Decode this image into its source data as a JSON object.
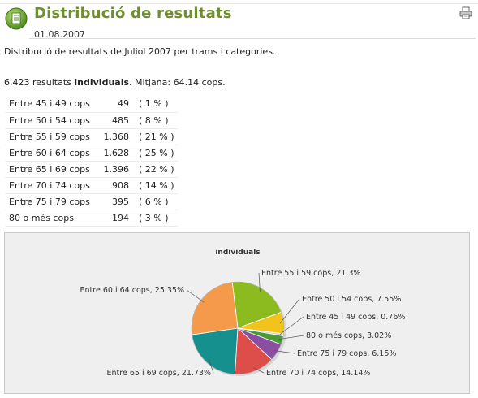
{
  "header": {
    "title": "Distribució de resultats",
    "date": "01.08.2007",
    "icon": "document-icon",
    "print_icon": "print-icon"
  },
  "intro": "Distribució de resultats de Juliol 2007 per trams i categories.",
  "summary": {
    "count": "6.423 resultats ",
    "bold": "individuals",
    "rest": ". Mitjana: 64.14 cops."
  },
  "table": {
    "rows": [
      {
        "label": "Entre 45 i 49 cops",
        "count": "49",
        "pct": "( 1 % )"
      },
      {
        "label": "Entre 50 i 54 cops",
        "count": "485",
        "pct": "( 8 % )"
      },
      {
        "label": "Entre 55 i 59 cops",
        "count": "1.368",
        "pct": "( 21 % )"
      },
      {
        "label": "Entre 60 i 64 cops",
        "count": "1.628",
        "pct": "( 25 % )"
      },
      {
        "label": "Entre 65 i 69 cops",
        "count": "1.396",
        "pct": "( 22 % )"
      },
      {
        "label": "Entre 70 i 74 cops",
        "count": "908",
        "pct": "( 14 % )"
      },
      {
        "label": "Entre 75 i 79 cops",
        "count": "395",
        "pct": "( 6 % )"
      },
      {
        "label": "80 o més cops",
        "count": "194",
        "pct": "( 3 % )"
      }
    ]
  },
  "chart_data": {
    "type": "pie",
    "title": "individuals",
    "slices": [
      {
        "label": "Entre 55 i 59 cops, 21.3%",
        "value": 21.3,
        "color": "#8cbb1f"
      },
      {
        "label": "Entre 50 i 54 cops, 7.55%",
        "value": 7.55,
        "color": "#f2c21d"
      },
      {
        "label": "Entre 45 i 49 cops, 0.76%",
        "value": 0.76,
        "color": "#cdd1cf"
      },
      {
        "label": "80 o més cops, 3.02%",
        "value": 3.02,
        "color": "#4a9a3a"
      },
      {
        "label": "Entre 75 i 79 cops, 6.15%",
        "value": 6.15,
        "color": "#8a4fa0"
      },
      {
        "label": "Entre 70 i 74 cops, 14.14%",
        "value": 14.14,
        "color": "#dd4d4a"
      },
      {
        "label": "Entre 65 i 69 cops, 21.73%",
        "value": 21.73,
        "color": "#15908f"
      },
      {
        "label": "Entre 60 i 64 cops, 25.35%",
        "value": 25.35,
        "color": "#f59a4a"
      }
    ]
  }
}
